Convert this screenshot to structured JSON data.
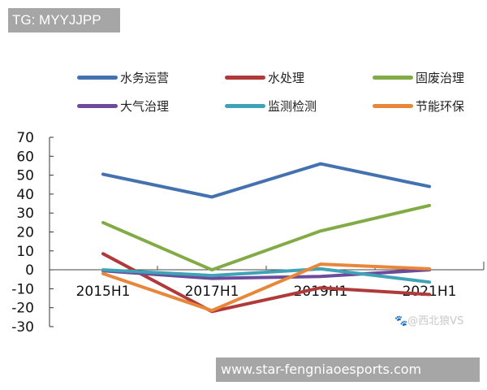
{
  "overlay": {
    "tg_label": "TG: MYYJJPP",
    "watermark": "🐾@西北狼VS",
    "url_banner": "www.star-fengniaoesports.com"
  },
  "legend": {
    "items": [
      {
        "label": "水务运营",
        "color": "#4472b0"
      },
      {
        "label": "水处理",
        "color": "#b03a3a"
      },
      {
        "label": "固废治理",
        "color": "#82ab45"
      },
      {
        "label": "大气治理",
        "color": "#6e4a9a"
      },
      {
        "label": "监测检测",
        "color": "#3fa3b8"
      },
      {
        "label": "节能环保",
        "color": "#e8873a"
      }
    ]
  },
  "axis": {
    "y_ticks": [
      "70",
      "60",
      "50",
      "40",
      "30",
      "20",
      "10",
      "0",
      "-10",
      "-20",
      "-30"
    ],
    "x_ticks": [
      "2015H1",
      "2017H1",
      "2019H1",
      "2021H1"
    ]
  },
  "chart_data": {
    "type": "line",
    "title": "",
    "xlabel": "",
    "ylabel": "",
    "categories": [
      "2015H1",
      "2017H1",
      "2019H1",
      "2021H1"
    ],
    "ylim": [
      -30,
      70
    ],
    "grid": false,
    "legend_position": "top",
    "series": [
      {
        "name": "水务运营",
        "color": "#4472b0",
        "values": [
          50.5,
          38.5,
          56,
          44
        ]
      },
      {
        "name": "水处理",
        "color": "#b03a3a",
        "values": [
          8.5,
          -22,
          -9.5,
          -13
        ]
      },
      {
        "name": "固废治理",
        "color": "#82ab45",
        "values": [
          25,
          0,
          20.5,
          34
        ]
      },
      {
        "name": "大气治理",
        "color": "#6e4a9a",
        "values": [
          -0.5,
          -4.5,
          -3.5,
          0
        ]
      },
      {
        "name": "监测检测",
        "color": "#3fa3b8",
        "values": [
          0,
          -3,
          0.5,
          -6.5
        ]
      },
      {
        "name": "节能环保",
        "color": "#e8873a",
        "values": [
          -2,
          -21.5,
          3,
          0.5
        ]
      }
    ]
  }
}
